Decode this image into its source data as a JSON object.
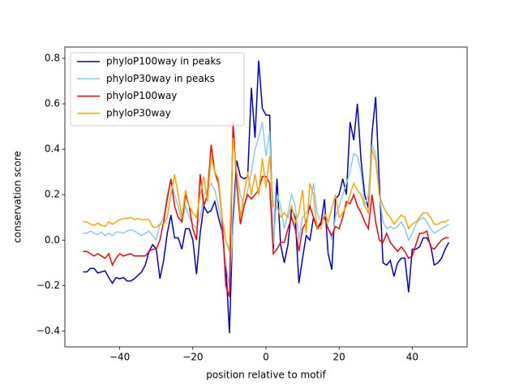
{
  "chart_data": {
    "type": "line",
    "xlabel": "position relative to motif",
    "ylabel": "conservation score",
    "x": [
      -50,
      -49,
      -48,
      -47,
      -46,
      -45,
      -44,
      -43,
      -42,
      -41,
      -40,
      -39,
      -38,
      -37,
      -36,
      -35,
      -34,
      -33,
      -32,
      -31,
      -30,
      -29,
      -28,
      -27,
      -26,
      -25,
      -24,
      -23,
      -22,
      -21,
      -20,
      -19,
      -18,
      -17,
      -16,
      -15,
      -14,
      -13,
      -12,
      -11,
      -10,
      -9,
      -8,
      -7,
      -6,
      -5,
      -4,
      -3,
      -2,
      -1,
      0,
      1,
      2,
      3,
      4,
      5,
      6,
      7,
      8,
      9,
      10,
      11,
      12,
      13,
      14,
      15,
      16,
      17,
      18,
      19,
      20,
      21,
      22,
      23,
      24,
      25,
      26,
      27,
      28,
      29,
      30,
      31,
      32,
      33,
      34,
      35,
      36,
      37,
      38,
      39,
      40,
      41,
      42,
      43,
      44,
      45,
      46,
      47,
      48,
      49,
      50
    ],
    "series": [
      {
        "name": "phyloP100way in peaks",
        "color": "#0000cd",
        "values": [
          -0.14,
          -0.14,
          -0.125,
          -0.125,
          -0.145,
          -0.14,
          -0.135,
          -0.165,
          -0.19,
          -0.165,
          -0.17,
          -0.165,
          -0.18,
          -0.18,
          -0.17,
          -0.155,
          -0.14,
          -0.11,
          -0.05,
          -0.02,
          -0.04,
          -0.17,
          -0.09,
          0.03,
          0.11,
          0.01,
          0.01,
          -0.04,
          0.05,
          0.05,
          0.0,
          -0.15,
          0.03,
          0.15,
          0.12,
          0.13,
          0.17,
          0.1,
          0.04,
          -0.1,
          -0.41,
          0.1,
          0.35,
          0.28,
          0.27,
          0.28,
          0.67,
          0.45,
          0.79,
          0.58,
          0.55,
          0.55,
          -0.04,
          0.27,
          -0.02,
          -0.1,
          -0.02,
          0.14,
          0.1,
          -0.19,
          -0.08,
          0.02,
          0.0,
          0.1,
          0.05,
          0.07,
          0.18,
          -0.06,
          -0.13,
          0.18,
          0.2,
          0.27,
          0.2,
          0.52,
          0.44,
          0.6,
          0.35,
          0.2,
          0.14,
          0.47,
          0.63,
          0.25,
          -0.1,
          -0.11,
          -0.09,
          -0.16,
          -0.1,
          -0.08,
          -0.08,
          -0.23,
          -0.04,
          -0.04,
          -0.03,
          0.01,
          0.01,
          -0.02,
          -0.11,
          -0.1,
          -0.08,
          -0.04,
          -0.01
        ]
      },
      {
        "name": "phyloP30way in peaks",
        "color": "#87ceeb",
        "values": [
          0.03,
          0.03,
          0.04,
          0.03,
          0.025,
          0.035,
          0.02,
          0.03,
          0.02,
          0.035,
          0.035,
          0.03,
          0.04,
          0.045,
          0.04,
          0.03,
          0.02,
          0.03,
          0.04,
          0.02,
          0.0,
          0.07,
          0.1,
          0.2,
          0.26,
          0.2,
          0.15,
          0.08,
          0.15,
          0.1,
          0.07,
          0.05,
          0.1,
          0.2,
          0.22,
          0.25,
          0.22,
          0.15,
          0.06,
          -0.1,
          -0.2,
          0.05,
          0.3,
          0.2,
          0.15,
          0.22,
          0.3,
          0.4,
          0.45,
          0.52,
          0.37,
          0.48,
          -0.02,
          0.2,
          0.15,
          0.05,
          0.12,
          0.2,
          0.15,
          0.0,
          0.1,
          0.12,
          0.15,
          0.25,
          0.12,
          0.08,
          0.1,
          0.05,
          0.0,
          0.1,
          0.15,
          0.2,
          0.25,
          0.3,
          0.38,
          0.37,
          0.3,
          0.15,
          0.2,
          0.42,
          0.38,
          0.2,
          0.08,
          0.05,
          0.06,
          0.05,
          0.06,
          0.08,
          0.05,
          0.0,
          0.03,
          0.07,
          0.09,
          0.1,
          0.08,
          0.05,
          0.03,
          0.04,
          0.05,
          0.06,
          0.07
        ]
      },
      {
        "name": "phyloP100way",
        "color": "#ff0000",
        "values": [
          -0.05,
          -0.05,
          -0.06,
          -0.07,
          -0.06,
          -0.07,
          -0.08,
          -0.06,
          -0.11,
          -0.08,
          -0.06,
          -0.07,
          -0.065,
          -0.06,
          -0.07,
          -0.07,
          -0.07,
          -0.07,
          -0.05,
          -0.04,
          -0.04,
          0.0,
          0.08,
          0.18,
          0.27,
          0.15,
          0.1,
          0.08,
          0.2,
          0.15,
          0.05,
          0.0,
          0.29,
          0.15,
          0.2,
          0.42,
          0.3,
          0.25,
          0.1,
          -0.2,
          -0.25,
          0.52,
          0.25,
          0.07,
          0.15,
          0.2,
          0.18,
          0.2,
          0.22,
          0.28,
          0.28,
          0.25,
          -0.06,
          -0.04,
          -0.01,
          -0.01,
          0.05,
          0.1,
          0.05,
          -0.05,
          0.05,
          0.08,
          0.15,
          0.1,
          0.05,
          0.08,
          0.1,
          0.05,
          0.02,
          0.06,
          0.05,
          0.1,
          0.17,
          0.16,
          0.2,
          0.15,
          0.12,
          0.08,
          0.05,
          0.2,
          0.08,
          0.0,
          -0.01,
          0.03,
          -0.01,
          -0.03,
          -0.05,
          -0.03,
          -0.05,
          -0.08,
          -0.07,
          -0.02,
          0.03,
          0.03,
          0.04,
          -0.03,
          -0.04,
          -0.02,
          0.0,
          0.01,
          0.01
        ]
      },
      {
        "name": "phyloP30way",
        "color": "#ffa500",
        "values": [
          0.08,
          0.08,
          0.07,
          0.065,
          0.075,
          0.065,
          0.06,
          0.08,
          0.07,
          0.08,
          0.09,
          0.095,
          0.095,
          0.1,
          0.09,
          0.095,
          0.09,
          0.09,
          0.09,
          0.06,
          0.055,
          0.07,
          0.07,
          0.1,
          0.2,
          0.29,
          0.2,
          0.1,
          0.22,
          0.15,
          0.12,
          0.1,
          0.2,
          0.28,
          0.17,
          0.37,
          0.3,
          0.27,
          0.1,
          0.0,
          -0.05,
          0.45,
          0.3,
          0.1,
          0.2,
          0.3,
          0.2,
          0.29,
          0.2,
          0.36,
          0.23,
          0.37,
          0.15,
          0.15,
          0.1,
          0.12,
          0.1,
          0.15,
          0.08,
          0.12,
          0.22,
          0.03,
          0.25,
          0.2,
          0.05,
          0.05,
          0.12,
          0.08,
          0.14,
          0.2,
          0.1,
          0.12,
          0.15,
          0.2,
          0.25,
          0.22,
          0.2,
          0.15,
          0.12,
          0.4,
          0.35,
          0.2,
          0.15,
          0.12,
          0.1,
          0.07,
          0.09,
          0.11,
          0.1,
          0.05,
          0.07,
          0.08,
          0.1,
          0.12,
          0.12,
          0.1,
          0.07,
          0.07,
          0.08,
          0.08,
          0.09
        ]
      }
    ],
    "xlim": [
      -55,
      55
    ],
    "ylim": [
      -0.47,
      0.85
    ],
    "xticks": [
      {
        "value": -40,
        "label": "−40"
      },
      {
        "value": -20,
        "label": "−20"
      },
      0,
      20,
      40
    ],
    "yticks": [
      {
        "value": -0.4,
        "label": "−0.4"
      },
      {
        "value": -0.2,
        "label": "−0.2"
      },
      {
        "value": 0,
        "label": "0.0"
      },
      0.2,
      0.4,
      0.6,
      0.8
    ],
    "legend": "upper left",
    "grid": false
  }
}
